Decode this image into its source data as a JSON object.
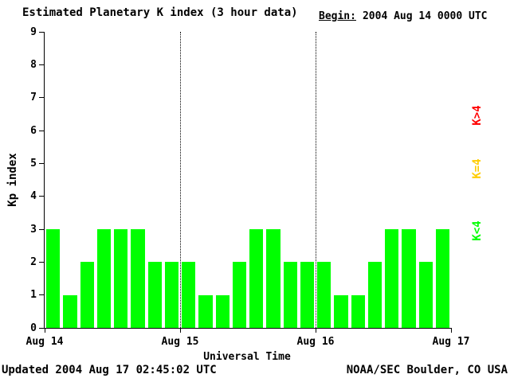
{
  "header": {
    "title": "Estimated Planetary K index (3 hour data)",
    "begin_label": "Begin:",
    "begin_value": "2004 Aug 14 0000 UTC"
  },
  "footer": {
    "updated": "Updated 2004 Aug 17 02:45:02 UTC",
    "source": "NOAA/SEC Boulder, CO USA"
  },
  "legend": [
    {
      "label": "K>4",
      "color": "#ff0000"
    },
    {
      "label": "K=4",
      "color": "#ffcc00"
    },
    {
      "label": "K<4",
      "color": "#00ff00"
    }
  ],
  "chart_data": {
    "type": "bar",
    "title": "Estimated Planetary K index (3 hour data)",
    "xlabel": "Universal Time",
    "ylabel": "Kp index",
    "ylim": [
      0,
      9
    ],
    "yticks": [
      0,
      1,
      2,
      3,
      4,
      5,
      6,
      7,
      8,
      9
    ],
    "xticklabels": [
      "Aug 14",
      "Aug 15",
      "Aug 16",
      "Aug 17"
    ],
    "bar_color": "#00ff00",
    "hours_per_bar": 3,
    "begin": "2004 Aug 14 0000 UTC",
    "values": [
      3,
      1,
      2,
      3,
      3,
      3,
      2,
      2,
      2,
      1,
      1,
      2,
      3,
      3,
      2,
      2,
      2,
      1,
      1,
      2,
      3,
      3,
      2,
      3
    ],
    "day_divider_labels": [
      "Aug 15",
      "Aug 16"
    ],
    "grid": "dotted vertical lines at day boundaries",
    "legend_position": "right, rotated"
  }
}
